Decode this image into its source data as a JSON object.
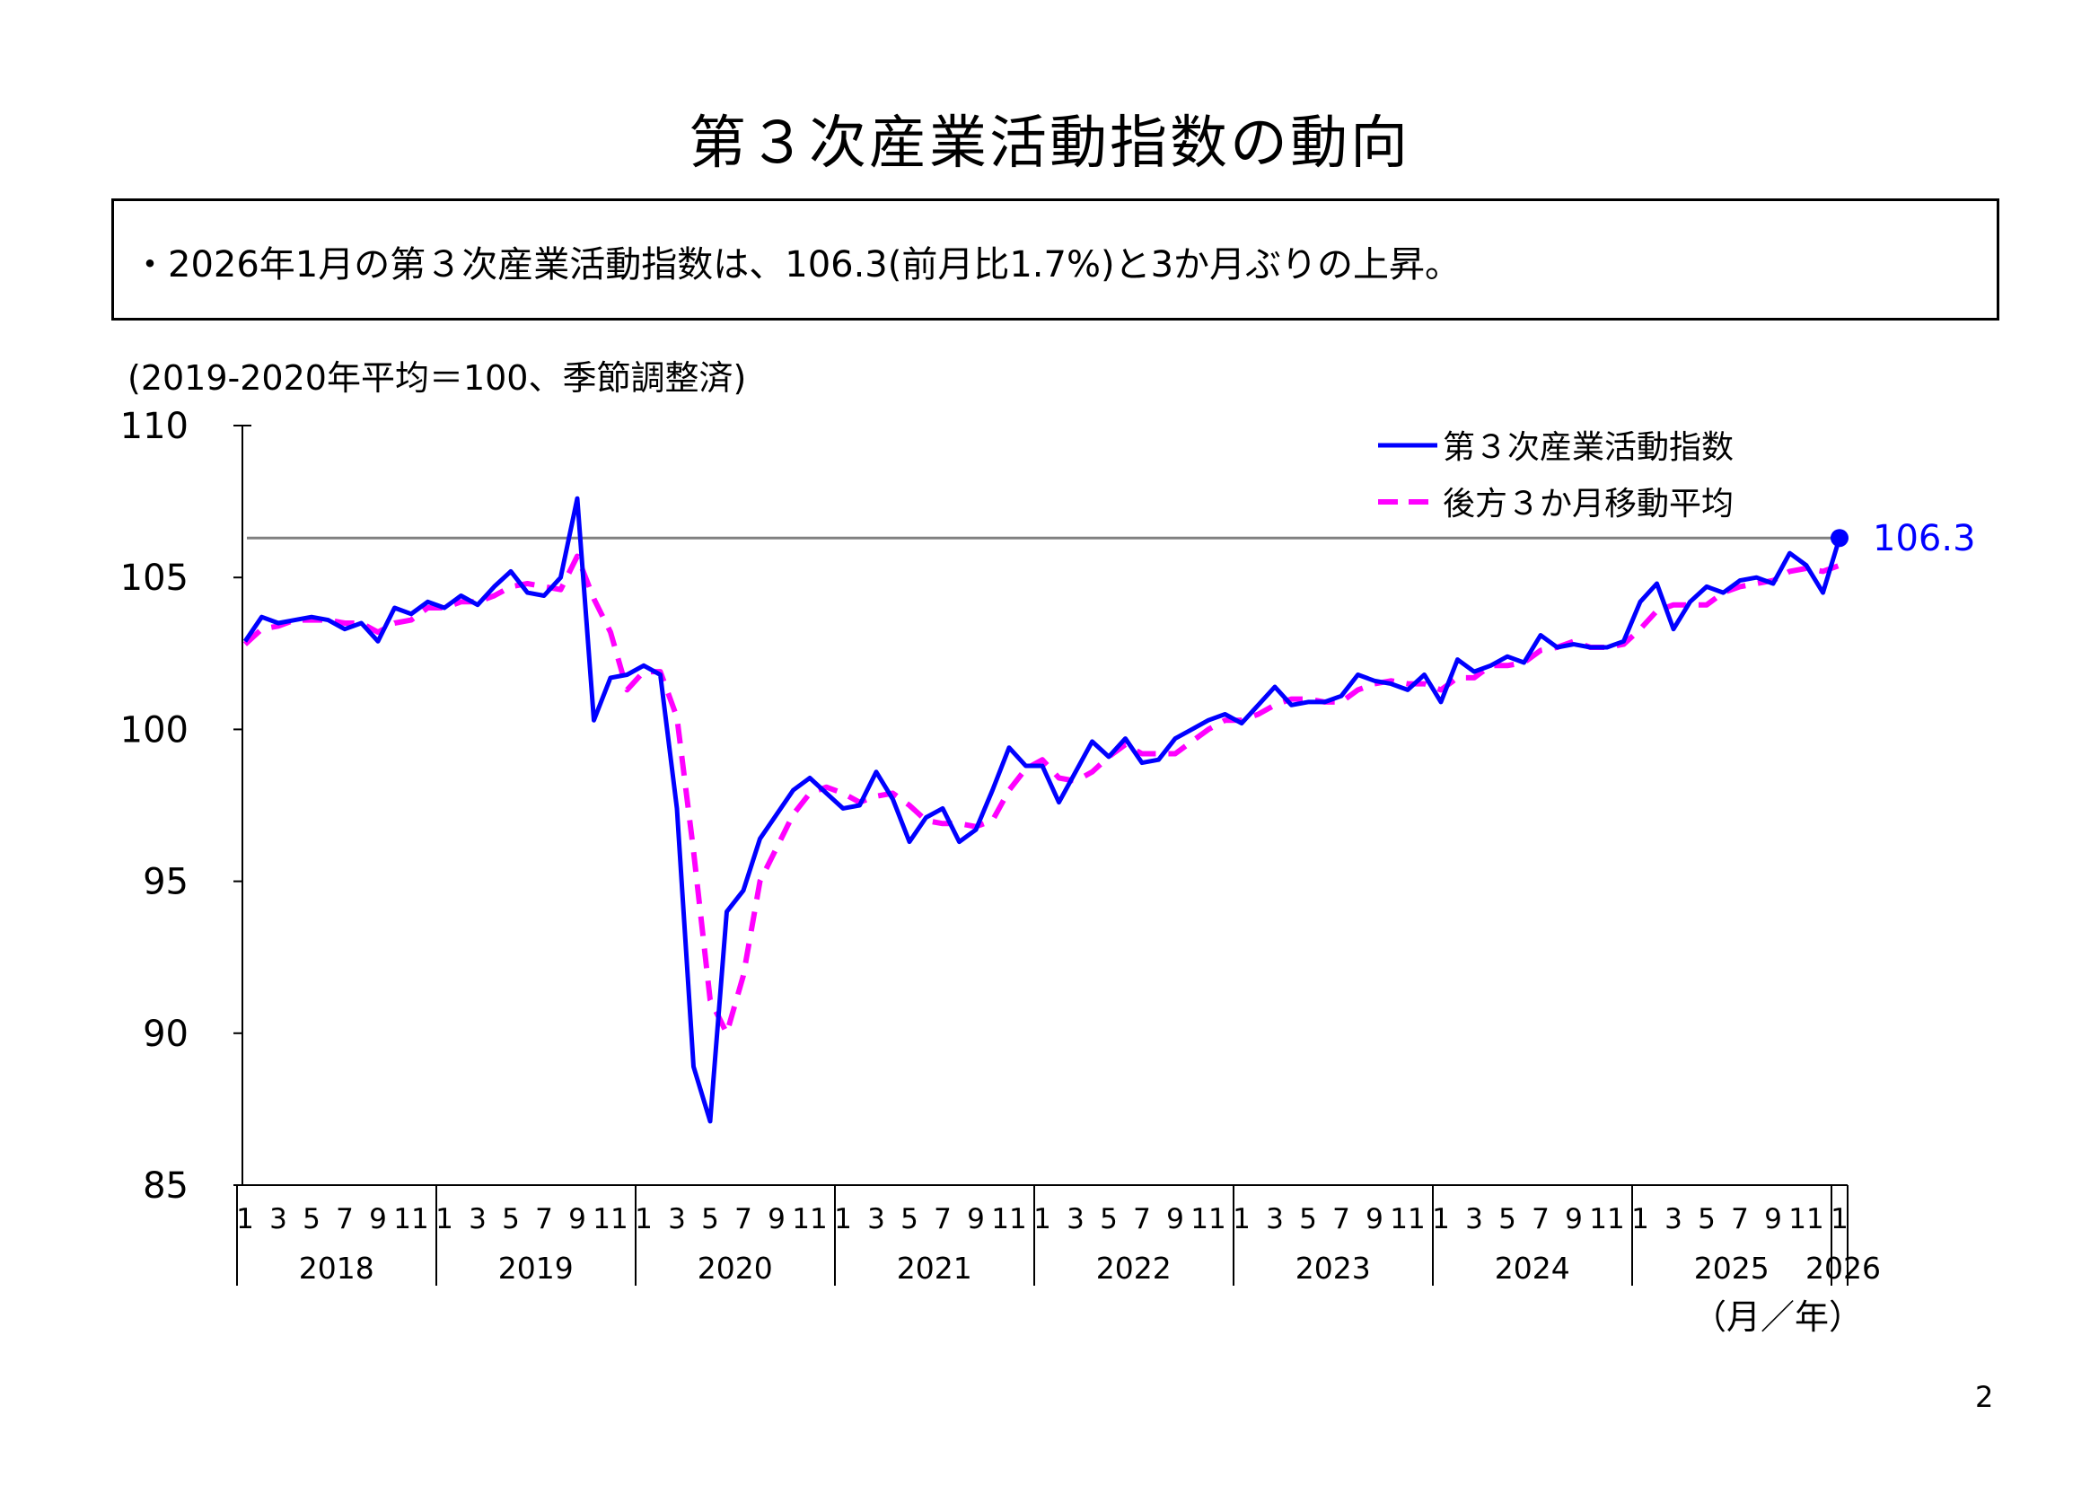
{
  "page": {
    "title": "第３次産業活動指数の動向",
    "summary": "・2026年1月の第３次産業活動指数は、106.3(前月比1.7%)と3か月ぶりの上昇。",
    "unit_note": "(2019-2020年平均＝100、季節調整済)",
    "page_number": "2"
  },
  "chart_data": {
    "type": "line",
    "title": "",
    "ylim": [
      85,
      110
    ],
    "yticks": [
      110,
      105,
      100,
      95,
      90,
      85
    ],
    "x_tick_labels": [
      "1",
      "3",
      "5",
      "7",
      "9",
      "11"
    ],
    "years": [
      "2018",
      "2019",
      "2020",
      "2021",
      "2022",
      "2023",
      "2024",
      "2025",
      "2026"
    ],
    "final_year_tick": "1",
    "xlabel": "（月／年）",
    "reference_line": 106.3,
    "end_label": "106.3",
    "grid": false,
    "legend_position": "top-right",
    "colors": {
      "index": "#0000ff",
      "moving_average": "#ff00ff",
      "reference": "#808080"
    },
    "x": [
      "2018-01",
      "2018-02",
      "2018-03",
      "2018-04",
      "2018-05",
      "2018-06",
      "2018-07",
      "2018-08",
      "2018-09",
      "2018-10",
      "2018-11",
      "2018-12",
      "2019-01",
      "2019-02",
      "2019-03",
      "2019-04",
      "2019-05",
      "2019-06",
      "2019-07",
      "2019-08",
      "2019-09",
      "2019-10",
      "2019-11",
      "2019-12",
      "2020-01",
      "2020-02",
      "2020-03",
      "2020-04",
      "2020-05",
      "2020-06",
      "2020-07",
      "2020-08",
      "2020-09",
      "2020-10",
      "2020-11",
      "2020-12",
      "2021-01",
      "2021-02",
      "2021-03",
      "2021-04",
      "2021-05",
      "2021-06",
      "2021-07",
      "2021-08",
      "2021-09",
      "2021-10",
      "2021-11",
      "2021-12",
      "2022-01",
      "2022-02",
      "2022-03",
      "2022-04",
      "2022-05",
      "2022-06",
      "2022-07",
      "2022-08",
      "2022-09",
      "2022-10",
      "2022-11",
      "2022-12",
      "2023-01",
      "2023-02",
      "2023-03",
      "2023-04",
      "2023-05",
      "2023-06",
      "2023-07",
      "2023-08",
      "2023-09",
      "2023-10",
      "2023-11",
      "2023-12",
      "2024-01",
      "2024-02",
      "2024-03",
      "2024-04",
      "2024-05",
      "2024-06",
      "2024-07",
      "2024-08",
      "2024-09",
      "2024-10",
      "2024-11",
      "2024-12",
      "2025-01",
      "2025-02",
      "2025-03",
      "2025-04",
      "2025-05",
      "2025-06",
      "2025-07",
      "2025-08",
      "2025-09",
      "2025-10",
      "2025-11",
      "2025-12",
      "2026-01"
    ],
    "series": [
      {
        "name": "第３次産業活動指数",
        "style": "solid",
        "values": [
          102.9,
          103.7,
          103.5,
          103.6,
          103.7,
          103.6,
          103.3,
          103.5,
          102.9,
          104.0,
          103.8,
          104.2,
          104.0,
          104.4,
          104.1,
          104.7,
          105.2,
          104.5,
          104.4,
          105.0,
          107.6,
          100.3,
          101.7,
          101.8,
          102.1,
          101.8,
          97.4,
          88.9,
          87.1,
          94.0,
          94.7,
          96.4,
          97.2,
          98.0,
          98.4,
          97.9,
          97.4,
          97.5,
          98.6,
          97.7,
          96.3,
          97.1,
          97.4,
          96.3,
          96.7,
          98.0,
          99.4,
          98.8,
          98.8,
          97.6,
          98.6,
          99.6,
          99.1,
          99.7,
          98.9,
          99.0,
          99.7,
          100.0,
          100.3,
          100.5,
          100.2,
          100.8,
          101.4,
          100.8,
          100.9,
          100.9,
          101.1,
          101.8,
          101.6,
          101.5,
          101.3,
          101.8,
          100.9,
          102.3,
          101.9,
          102.1,
          102.4,
          102.2,
          103.1,
          102.7,
          102.8,
          102.7,
          102.7,
          102.9,
          104.2,
          104.8,
          103.3,
          104.2,
          104.7,
          104.5,
          104.9,
          105.0,
          104.8,
          105.8,
          105.4,
          104.5,
          106.3
        ]
      },
      {
        "name": "後方３か月移動平均",
        "style": "dashed",
        "values": [
          102.8,
          103.3,
          103.4,
          103.6,
          103.6,
          103.6,
          103.5,
          103.5,
          103.2,
          103.5,
          103.6,
          104.0,
          104.0,
          104.2,
          104.2,
          104.4,
          104.7,
          104.8,
          104.7,
          104.6,
          105.7,
          104.3,
          103.2,
          101.3,
          101.9,
          101.9,
          100.4,
          96.0,
          91.1,
          90.0,
          91.9,
          95.0,
          96.1,
          97.2,
          97.9,
          98.1,
          97.9,
          97.6,
          97.8,
          97.9,
          97.5,
          97.0,
          96.9,
          96.9,
          96.8,
          97.0,
          98.0,
          98.7,
          99.0,
          98.4,
          98.3,
          98.6,
          99.1,
          99.5,
          99.2,
          99.2,
          99.2,
          99.6,
          100.0,
          100.3,
          100.3,
          100.5,
          100.8,
          101.0,
          101.0,
          100.9,
          100.9,
          101.3,
          101.5,
          101.6,
          101.5,
          101.5,
          101.3,
          101.7,
          101.7,
          102.1,
          102.1,
          102.2,
          102.6,
          102.7,
          102.9,
          102.7,
          102.7,
          102.8,
          103.3,
          103.9,
          104.1,
          104.1,
          104.1,
          104.5,
          104.7,
          104.8,
          104.9,
          105.2,
          105.3,
          105.2,
          105.4
        ]
      }
    ]
  }
}
